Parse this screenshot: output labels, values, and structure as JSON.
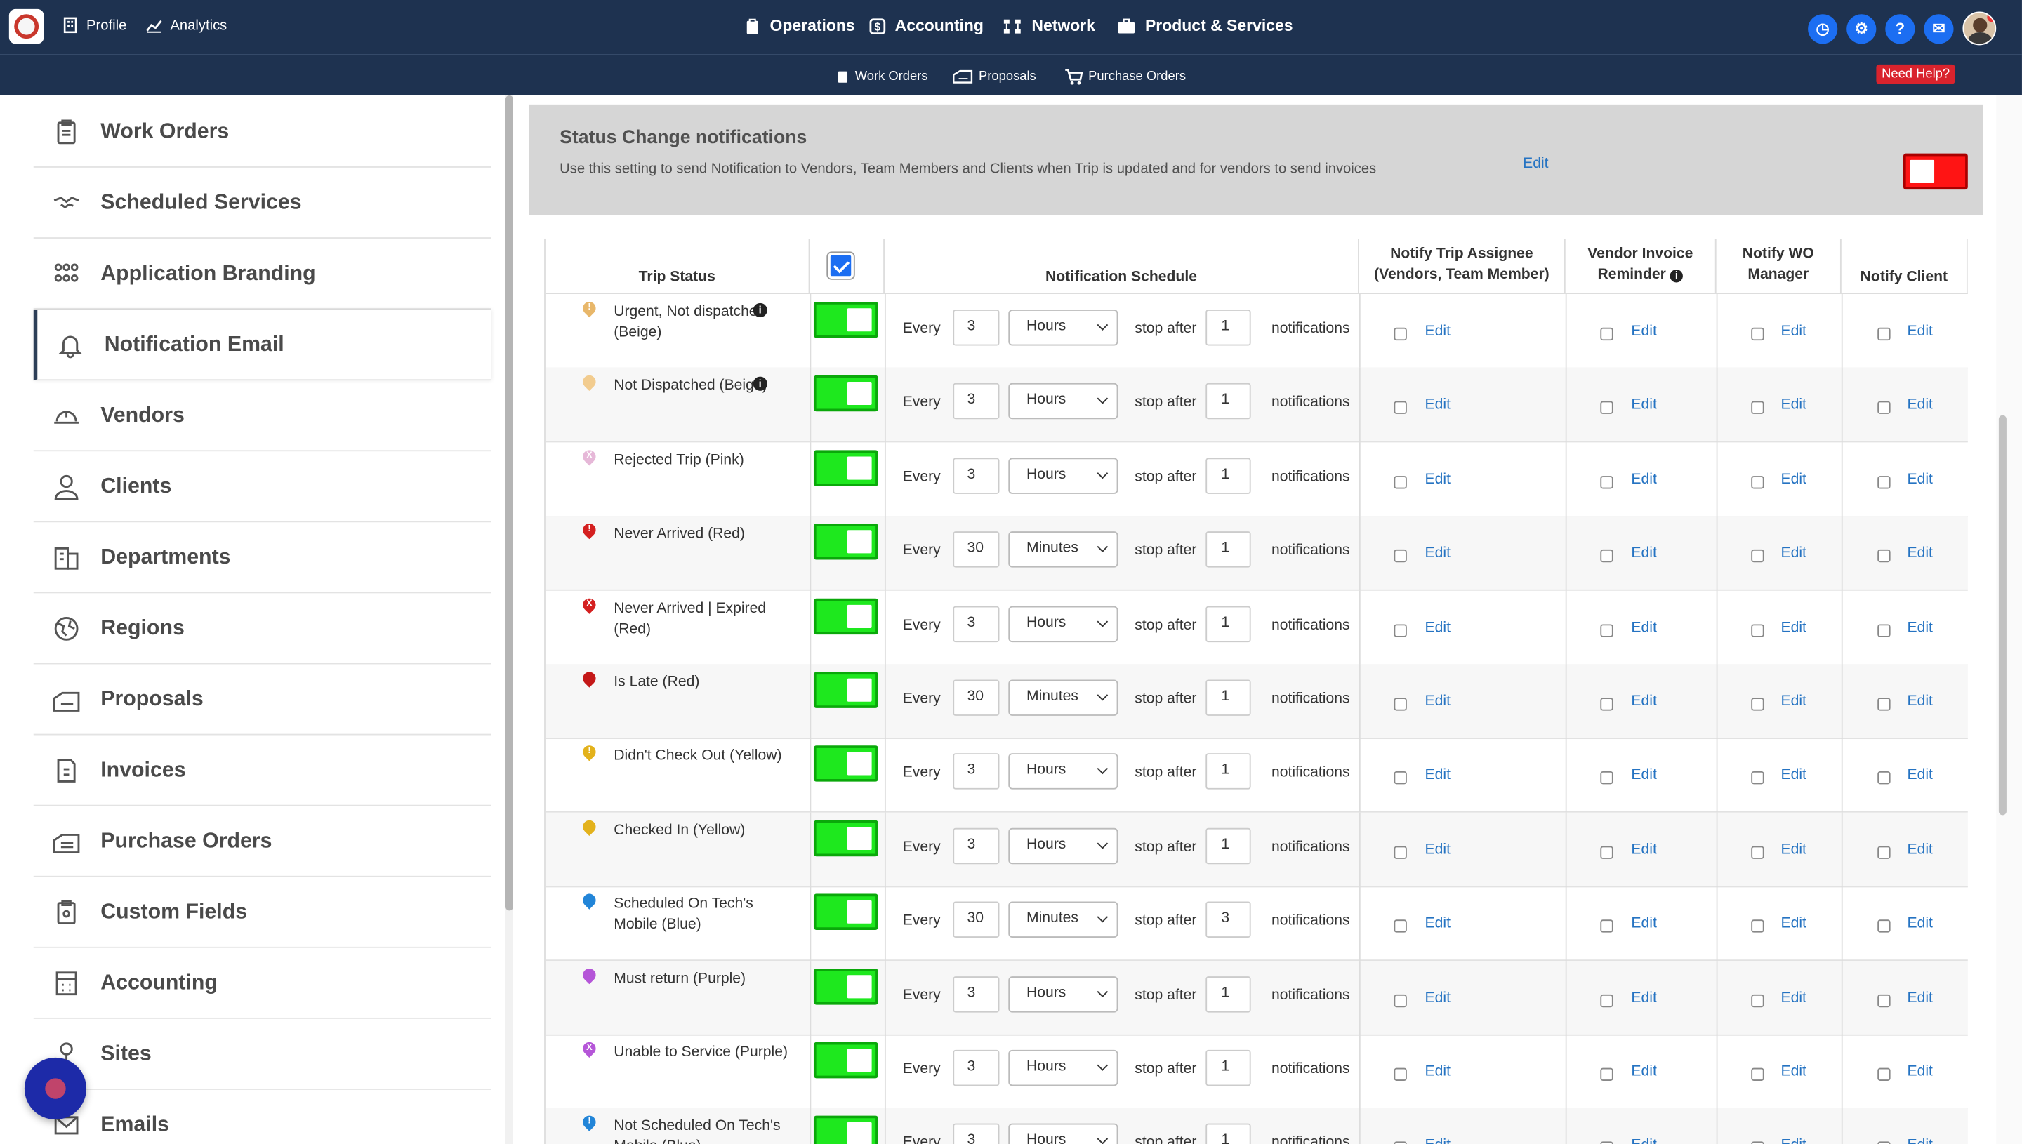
{
  "topnav": {
    "left": [
      {
        "label": "Profile",
        "icon": "building-icon"
      },
      {
        "label": "Analytics",
        "icon": "chart-icon"
      }
    ],
    "center": [
      {
        "label": "Operations",
        "icon": "clipboard-icon"
      },
      {
        "label": "Accounting",
        "icon": "dollar-icon"
      },
      {
        "label": "Network",
        "icon": "network-icon"
      },
      {
        "label": "Product & Services",
        "icon": "briefcase-icon"
      }
    ],
    "right_icons": [
      "clock-icon",
      "gear-icon",
      "help-icon",
      "chat-icon"
    ],
    "help_glyph": "?"
  },
  "subnav": {
    "items": [
      {
        "label": "Work Orders",
        "icon": "clipboard-icon"
      },
      {
        "label": "Proposals",
        "icon": "proposal-icon"
      },
      {
        "label": "Purchase Orders",
        "icon": "cart-icon"
      }
    ],
    "need_help": "Need Help?"
  },
  "sidebar": {
    "items": [
      {
        "label": "Work Orders",
        "icon": "clipboard-icon"
      },
      {
        "label": "Scheduled Services",
        "icon": "handshake-icon"
      },
      {
        "label": "Application Branding",
        "icon": "people-icon"
      },
      {
        "label": "Notification Email",
        "icon": "bell-icon",
        "active": true
      },
      {
        "label": "Vendors",
        "icon": "hardhat-icon"
      },
      {
        "label": "Clients",
        "icon": "user-icon"
      },
      {
        "label": "Departments",
        "icon": "building-icon"
      },
      {
        "label": "Regions",
        "icon": "globe-icon"
      },
      {
        "label": "Proposals",
        "icon": "proposal-icon"
      },
      {
        "label": "Invoices",
        "icon": "invoice-icon"
      },
      {
        "label": "Purchase Orders",
        "icon": "purchase-icon"
      },
      {
        "label": "Custom Fields",
        "icon": "clipboard-icon"
      },
      {
        "label": "Accounting",
        "icon": "calculator-icon"
      },
      {
        "label": "Sites",
        "icon": "pin-icon"
      },
      {
        "label": "Emails",
        "icon": "mail-icon"
      }
    ]
  },
  "panel": {
    "title": "Status Change notifications",
    "description": "Use this setting to send Notification to Vendors, Team Members and Clients when Trip is updated and for vendors to send invoices",
    "edit": "Edit",
    "enabled": false
  },
  "table": {
    "headers": {
      "trip_status": "Trip Status",
      "schedule": "Notification Schedule",
      "assignee_1": "Notify Trip Assignee",
      "assignee_2": "(Vendors, Team Member)",
      "vendor_1": "Vendor Invoice",
      "vendor_2": "Reminder",
      "wo_1": "Notify WO",
      "wo_2": "Manager",
      "client": "Notify Client"
    },
    "labels": {
      "every": "Every",
      "stop_after": "stop after",
      "notifications": "notifications",
      "edit": "Edit",
      "info": "i"
    },
    "rows": [
      {
        "status": "Urgent, Not dispatched (Beige)",
        "color": "#e8b76a",
        "glyph": "!",
        "info": true,
        "every": "3",
        "unit": "Hours",
        "stop": "1"
      },
      {
        "status": "Not Dispatched (Beige)",
        "color": "#f2cc8f",
        "glyph": "",
        "info": true,
        "every": "3",
        "unit": "Hours",
        "stop": "1"
      },
      {
        "status": "Rejected Trip (Pink)",
        "color": "#e6b8d8",
        "glyph": "X",
        "info": false,
        "every": "3",
        "unit": "Hours",
        "stop": "1"
      },
      {
        "status": "Never Arrived (Red)",
        "color": "#d42020",
        "glyph": "!",
        "info": false,
        "every": "30",
        "unit": "Minutes",
        "stop": "1"
      },
      {
        "status": "Never Arrived | Expired (Red)",
        "color": "#d42020",
        "glyph": "X",
        "info": false,
        "every": "3",
        "unit": "Hours",
        "stop": "1"
      },
      {
        "status": "Is Late (Red)",
        "color": "#c41818",
        "glyph": "",
        "info": false,
        "every": "30",
        "unit": "Minutes",
        "stop": "1"
      },
      {
        "status": "Didn't Check Out (Yellow)",
        "color": "#e3b21c",
        "glyph": "!",
        "info": false,
        "every": "3",
        "unit": "Hours",
        "stop": "1"
      },
      {
        "status": "Checked In (Yellow)",
        "color": "#e3b21c",
        "glyph": "",
        "info": false,
        "every": "3",
        "unit": "Hours",
        "stop": "1"
      },
      {
        "status": "Scheduled On Tech's Mobile (Blue)",
        "color": "#2285d8",
        "glyph": "",
        "info": false,
        "every": "30",
        "unit": "Minutes",
        "stop": "3"
      },
      {
        "status": "Must return (Purple)",
        "color": "#b556d8",
        "glyph": "",
        "info": false,
        "every": "3",
        "unit": "Hours",
        "stop": "1"
      },
      {
        "status": "Unable to Service (Purple)",
        "color": "#b556d8",
        "glyph": "X",
        "info": false,
        "every": "3",
        "unit": "Hours",
        "stop": "1"
      },
      {
        "status": "Not Scheduled On Tech's Mobile (Blue)",
        "color": "#2285d8",
        "glyph": "!",
        "info": false,
        "every": "3",
        "unit": "Hours",
        "stop": "1"
      }
    ]
  }
}
